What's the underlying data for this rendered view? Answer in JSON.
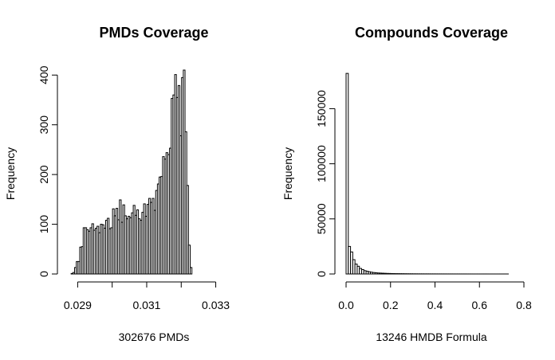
{
  "chart_data": [
    {
      "type": "bar",
      "subtype": "histogram",
      "title": "PMDs Coverage",
      "xlabel": "302676 PMDs",
      "ylabel": "Frequency",
      "xlim": [
        0.02876,
        0.03368
      ],
      "ylim": [
        0,
        410
      ],
      "xticks": [
        0.029,
        0.03,
        0.031,
        0.032,
        0.033
      ],
      "xtick_labels": [
        "0.029",
        "",
        "0.031",
        "",
        "0.033"
      ],
      "yticks": [
        0,
        100,
        200,
        300,
        400
      ],
      "ytick_labels": [
        "0",
        "100",
        "200",
        "300",
        "400"
      ],
      "bin_start": 0.02876,
      "bin_width": 5e-05,
      "values": [
        0,
        1,
        3,
        13,
        25,
        25,
        54,
        55,
        93,
        93,
        89,
        86,
        93,
        101,
        88,
        92,
        96,
        83,
        100,
        99,
        92,
        108,
        112,
        91,
        93,
        131,
        117,
        132,
        109,
        149,
        104,
        139,
        117,
        111,
        116,
        113,
        123,
        138,
        118,
        129,
        111,
        108,
        124,
        141,
        116,
        140,
        152,
        144,
        152,
        128,
        168,
        181,
        195,
        196,
        236,
        231,
        244,
        240,
        253,
        353,
        360,
        401,
        355,
        379,
        278,
        395,
        410,
        286,
        178,
        58,
        13
      ],
      "grid": false,
      "legend": "none"
    },
    {
      "type": "bar",
      "subtype": "histogram",
      "title": "Compounds Coverage",
      "xlabel": "13246 HMDB Formula",
      "ylabel": "Frequency",
      "xlim": [
        0,
        0.8
      ],
      "ylim": [
        0,
        185000
      ],
      "xticks": [
        0.0,
        0.2,
        0.4,
        0.6,
        0.8
      ],
      "xtick_labels": [
        "0.0",
        "0.2",
        "0.4",
        "0.6",
        "0.8"
      ],
      "yticks": [
        0,
        50000,
        100000,
        150000
      ],
      "ytick_labels": [
        "0",
        "50000",
        "100000",
        "150000"
      ],
      "bin_start": 0,
      "bin_width": 0.01,
      "values": [
        182000,
        25000,
        20000,
        13000,
        9000,
        7000,
        5000,
        4000,
        3000,
        2500,
        2000,
        1600,
        1300,
        1100,
        900,
        800,
        700,
        600,
        500,
        450,
        400,
        350,
        300,
        280,
        250,
        230,
        200,
        180,
        160,
        150,
        130,
        120,
        110,
        100,
        95,
        90,
        85,
        80,
        75,
        70,
        65,
        60,
        55,
        50,
        48,
        45,
        42,
        40,
        38,
        35,
        33,
        30,
        28,
        26,
        24,
        22,
        20,
        18,
        16,
        15,
        14,
        13,
        12,
        11,
        10,
        9,
        8,
        7,
        6,
        5,
        5,
        4,
        4,
        3,
        3,
        2
      ],
      "grid": false,
      "legend": "none"
    }
  ]
}
